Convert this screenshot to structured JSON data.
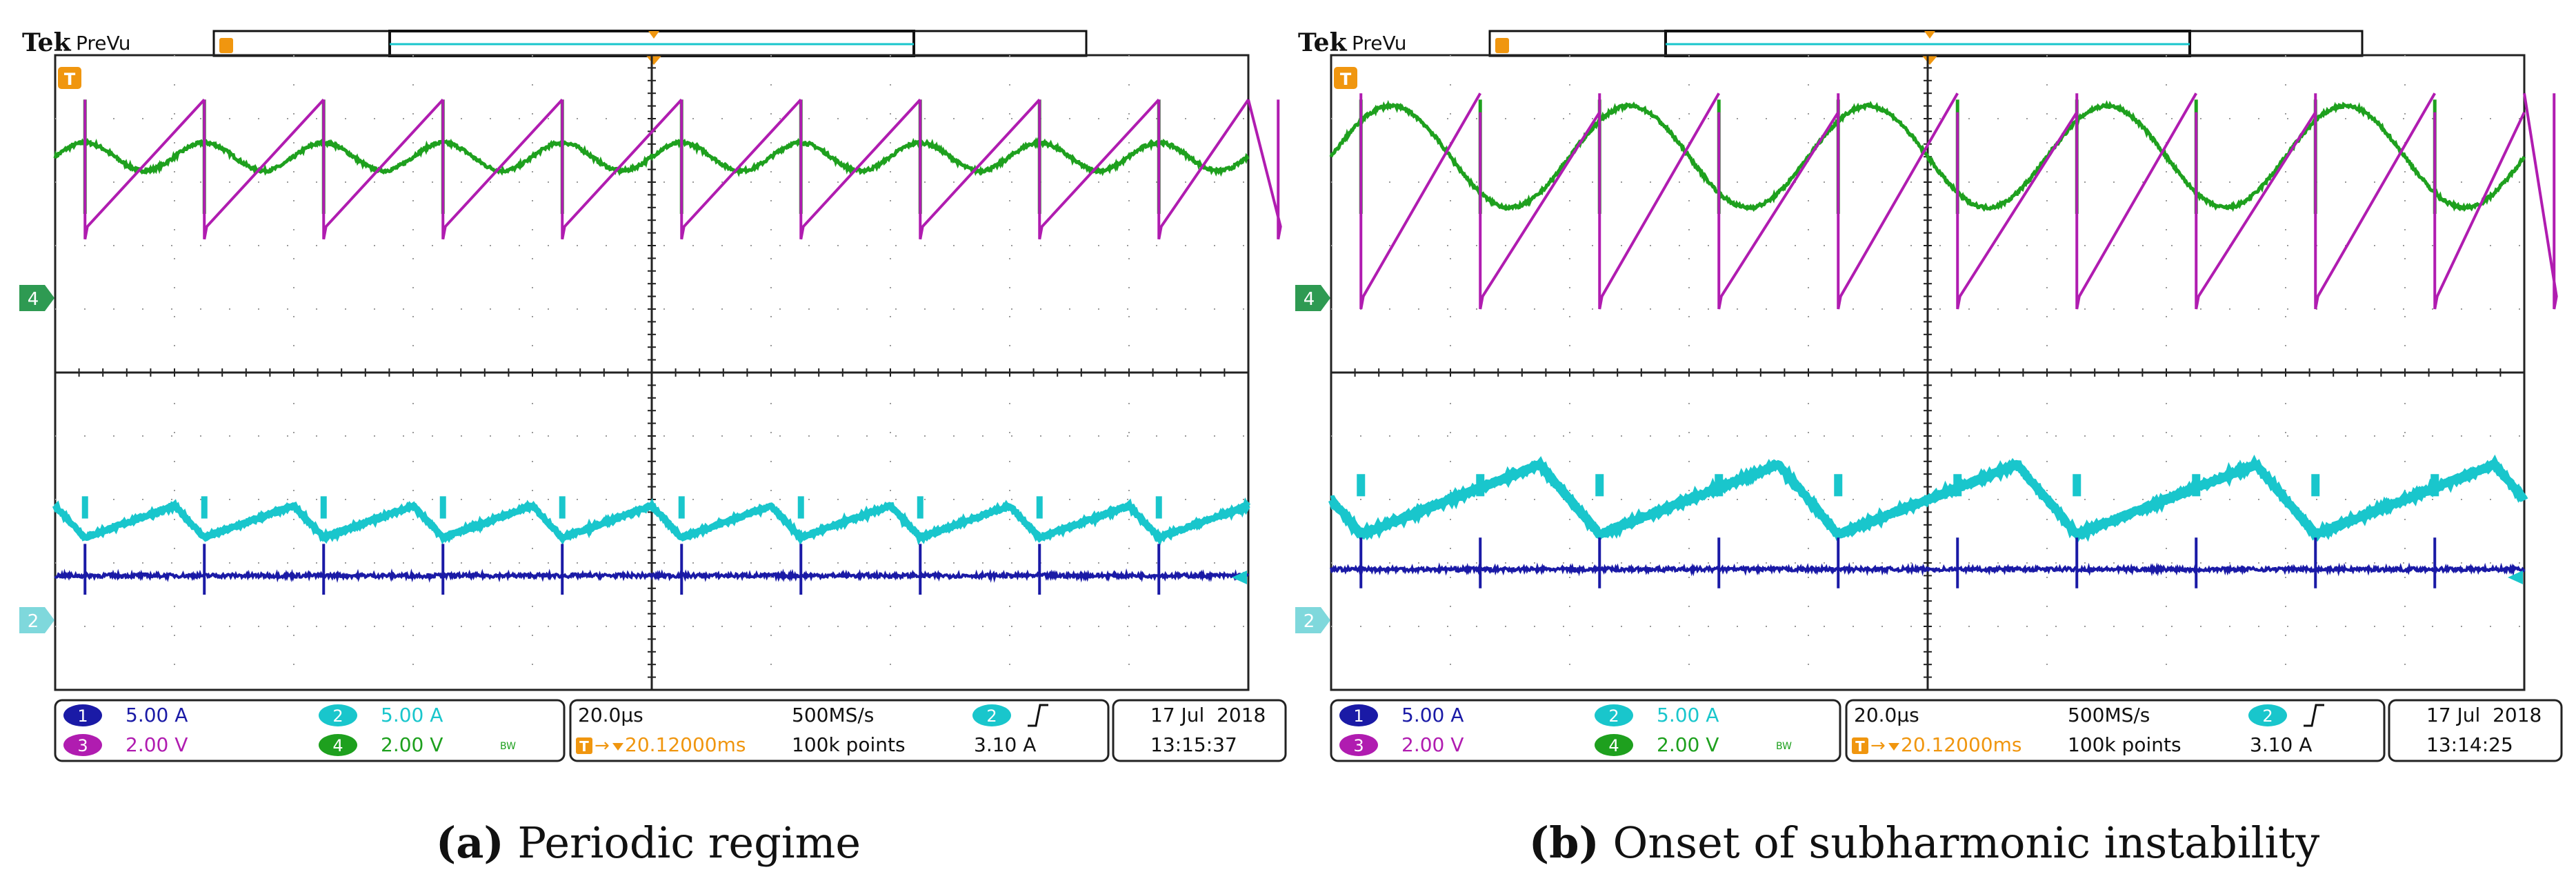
{
  "colors": {
    "ch1": "#1a1aa6",
    "ch2": "#19c6cc",
    "ch3": "#b01cb0",
    "ch4": "#1ea01e",
    "trigger": "#f0960f",
    "grid": "#9a9a9a",
    "frame": "#222222"
  },
  "scopes": [
    {
      "id": "a",
      "brand": "Tek",
      "mode": "PreVu",
      "trigger_marker": "T",
      "ch4_marker": "4",
      "ch2_marker": "2",
      "ch1_scale": "5.00 A",
      "ch2_scale": "5.00 A",
      "ch3_scale": "2.00 V",
      "ch4_scale": "2.00 V",
      "bw_limit": "BW",
      "timebase": "20.0µs",
      "sample_rate": "500MS/s",
      "trigger_delay": "20.12000ms",
      "record_length": "100k points",
      "trigger_source": "2",
      "trigger_slope": "rising",
      "trigger_level": "3.10 A",
      "date": "17 Jul  2018",
      "time": "13:15:37",
      "caption_label": "(a)",
      "caption_text": "Periodic regime"
    },
    {
      "id": "b",
      "brand": "Tek",
      "mode": "PreVu",
      "trigger_marker": "T",
      "ch4_marker": "4",
      "ch2_marker": "2",
      "ch1_scale": "5.00 A",
      "ch2_scale": "5.00 A",
      "ch3_scale": "2.00 V",
      "ch4_scale": "2.00 V",
      "bw_limit": "BW",
      "timebase": "20.0µs",
      "sample_rate": "500MS/s",
      "trigger_delay": "20.12000ms",
      "record_length": "100k points",
      "trigger_source": "2",
      "trigger_slope": "rising",
      "trigger_level": "3.10 A",
      "date": "17 Jul  2018",
      "time": "13:14:25",
      "caption_label": "(b)",
      "caption_text": "Onset of subharmonic instability"
    }
  ],
  "chart_data": [
    {
      "type": "line",
      "title": "(a) Periodic regime",
      "x_unit": "divisions (20.0µs/div)",
      "y_unit": "divisions",
      "xlim": [
        0,
        10
      ],
      "ylim": [
        0,
        10
      ],
      "grid": true,
      "switching_period_div": 1.0,
      "subharmonic": false,
      "series": [
        {
          "name": "ch3_sawtooth",
          "channel": "3",
          "low_div": 7.3,
          "high_div": 9.3
        },
        {
          "name": "ch4_ripple",
          "channel": "4",
          "mean_div": 8.4,
          "amplitude_div": 0.22
        },
        {
          "name": "ch2_current",
          "channel": "2",
          "mean_div": 2.65,
          "amplitude_div": 0.25
        },
        {
          "name": "ch1_current",
          "channel": "1",
          "mean_div": 1.8,
          "amplitude_div": 0.02
        }
      ]
    },
    {
      "type": "line",
      "title": "(b) Onset of subharmonic instability",
      "x_unit": "divisions (20.0µs/div)",
      "y_unit": "divisions",
      "xlim": [
        0,
        10
      ],
      "ylim": [
        0,
        10
      ],
      "grid": true,
      "switching_period_div": 1.0,
      "subharmonic": true,
      "series": [
        {
          "name": "ch3_sawtooth",
          "channel": "3",
          "low_div": 6.2,
          "high_div": 9.4
        },
        {
          "name": "ch4_ripple",
          "channel": "4",
          "mean_div": 8.4,
          "amplitude_div": 0.8
        },
        {
          "name": "ch2_current",
          "channel": "2",
          "mean_div": 3.0,
          "amplitude_div": 0.55
        },
        {
          "name": "ch1_current",
          "channel": "1",
          "mean_div": 1.9,
          "amplitude_div": 0.02
        }
      ]
    }
  ]
}
